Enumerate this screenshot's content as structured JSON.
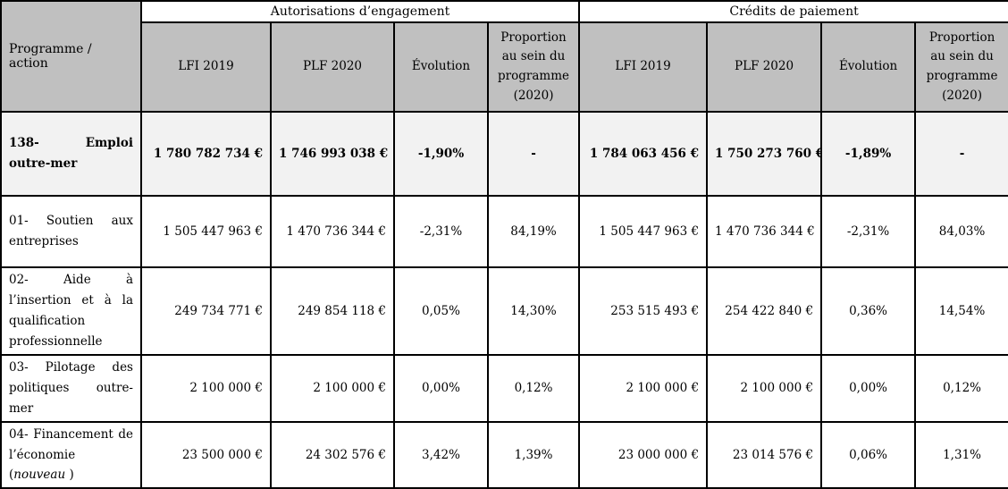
{
  "colors": {
    "header_fill": "#c0c0c0",
    "group_header_fill": "#ffffff",
    "program_row_fill": "#f2f2f2",
    "border": "#000000",
    "text": "#000000"
  },
  "table": {
    "corner_header": "Programme / action",
    "groups": [
      {
        "label": "Autorisations d’engagement"
      },
      {
        "label": "Crédits de paiement"
      }
    ],
    "sub_headers": [
      "LFI 2019",
      "PLF 2020",
      "Évolution",
      "Proportion au sein du programme (2020)"
    ],
    "rows": [
      {
        "label": "138- Emploi outre-mer",
        "ae_lfi": "1 780 782 734 €",
        "ae_plf": "1 746 993 038 €",
        "ae_evolution": "-1,90%",
        "ae_proportion": "-",
        "cp_lfi": "1 784 063 456 €",
        "cp_plf": "1 750 273 760 €",
        "cp_evolution": "-1,89%",
        "cp_proportion": "-"
      },
      {
        "label": "01- Soutien aux entreprises",
        "ae_lfi": "1 505 447 963 €",
        "ae_plf": "1 470 736 344 €",
        "ae_evolution": "-2,31%",
        "ae_proportion": "84,19%",
        "cp_lfi": "1 505 447 963 €",
        "cp_plf": "1 470 736 344 €",
        "cp_evolution": "-2,31%",
        "cp_proportion": "84,03%"
      },
      {
        "label": "02- Aide à l’insertion et à la qualification professionnelle",
        "ae_lfi": "249 734 771 €",
        "ae_plf": "249 854 118 €",
        "ae_evolution": "0,05%",
        "ae_proportion": "14,30%",
        "cp_lfi": "253 515 493 €",
        "cp_plf": "254 422 840 €",
        "cp_evolution": "0,36%",
        "cp_proportion": "14,54%"
      },
      {
        "label": "03- Pilotage des politiques outre-mer",
        "ae_lfi": "2 100 000 €",
        "ae_plf": "2 100 000 €",
        "ae_evolution": "0,00%",
        "ae_proportion": "0,12%",
        "cp_lfi": "2 100 000 €",
        "cp_plf": "2 100 000 €",
        "cp_evolution": "0,00%",
        "cp_proportion": "0,12%"
      },
      {
        "label": "04- Financement de l’économie (",
        "label_italic": "nouveau",
        "label_suffix": " )",
        "ae_lfi": "23 500 000 €",
        "ae_plf": "24 302 576 €",
        "ae_evolution": "3,42%",
        "ae_proportion": "1,39%",
        "cp_lfi": "23 000 000 €",
        "cp_plf": "23 014 576 €",
        "cp_evolution": "0,06%",
        "cp_proportion": "1,31%"
      }
    ]
  }
}
